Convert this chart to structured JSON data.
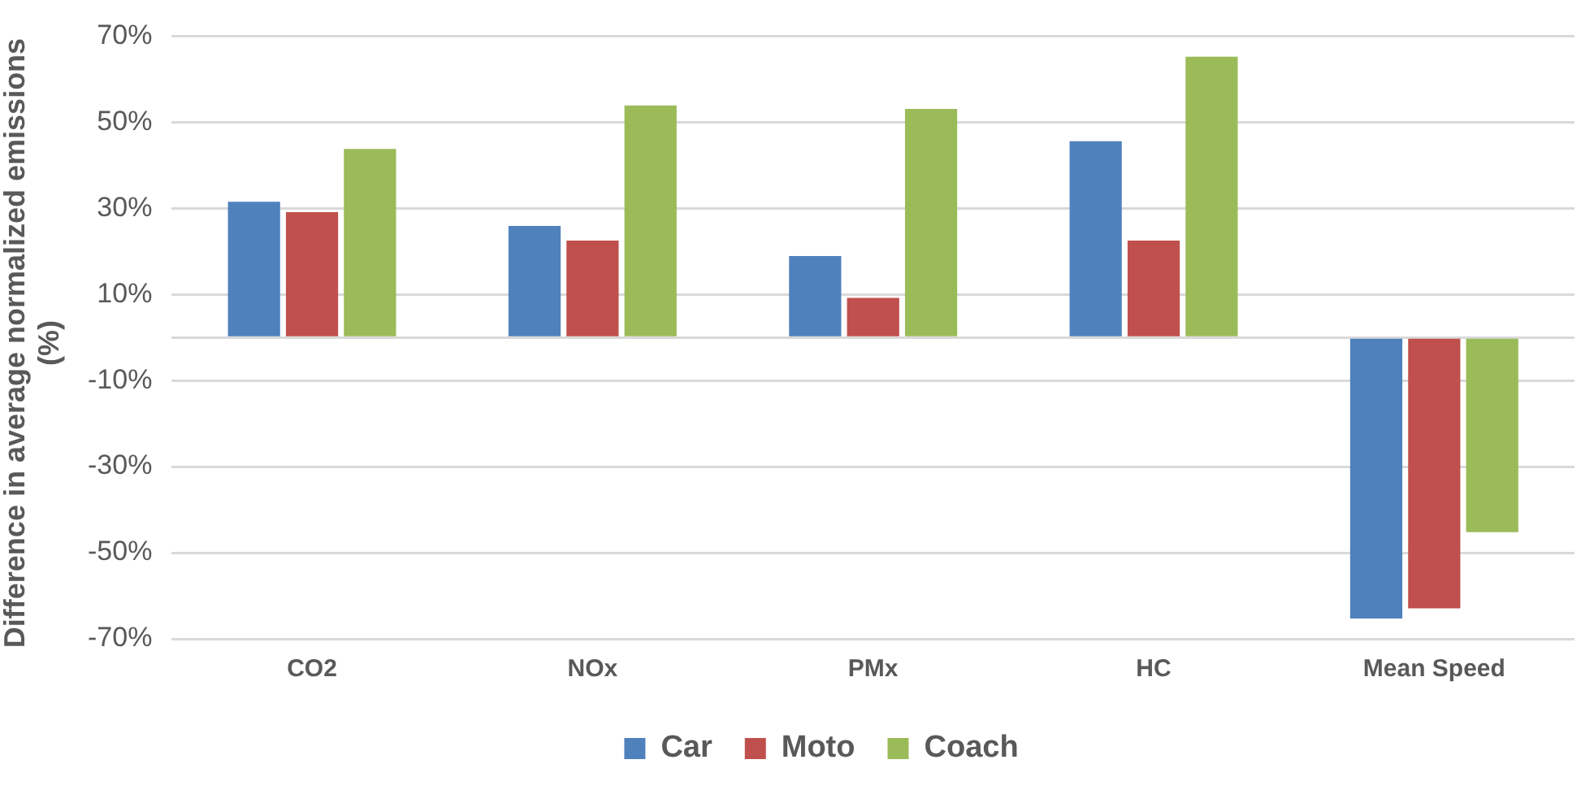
{
  "chart_data": {
    "type": "bar",
    "ylabel": "Difference in average normalized emissions (%)",
    "categories": [
      "CO2",
      "NOx",
      "PMx",
      "HC",
      "Mean Speed"
    ],
    "series": [
      {
        "name": "Car",
        "color": "#4f81bd",
        "values": [
          31.5,
          25.9,
          18.9,
          45.6,
          -65.3
        ]
      },
      {
        "name": "Moto",
        "color": "#c0504d",
        "values": [
          29.1,
          22.5,
          9.2,
          22.5,
          -62.9
        ]
      },
      {
        "name": "Coach",
        "color": "#9bbb59",
        "values": [
          43.8,
          53.9,
          53.1,
          65.2,
          -45.2
        ]
      }
    ],
    "ylim": [
      -70,
      70
    ],
    "yticks": [
      {
        "value": -70,
        "label": "-70%"
      },
      {
        "value": -50,
        "label": "-50%"
      },
      {
        "value": -30,
        "label": "-30%"
      },
      {
        "value": -10,
        "label": "-10%"
      },
      {
        "value": 0,
        "label": null
      },
      {
        "value": 10,
        "label": "10%"
      },
      {
        "value": 30,
        "label": "30%"
      },
      {
        "value": 50,
        "label": "50%"
      },
      {
        "value": 70,
        "label": "70%"
      }
    ],
    "grid": "y",
    "legend": "bottom"
  }
}
